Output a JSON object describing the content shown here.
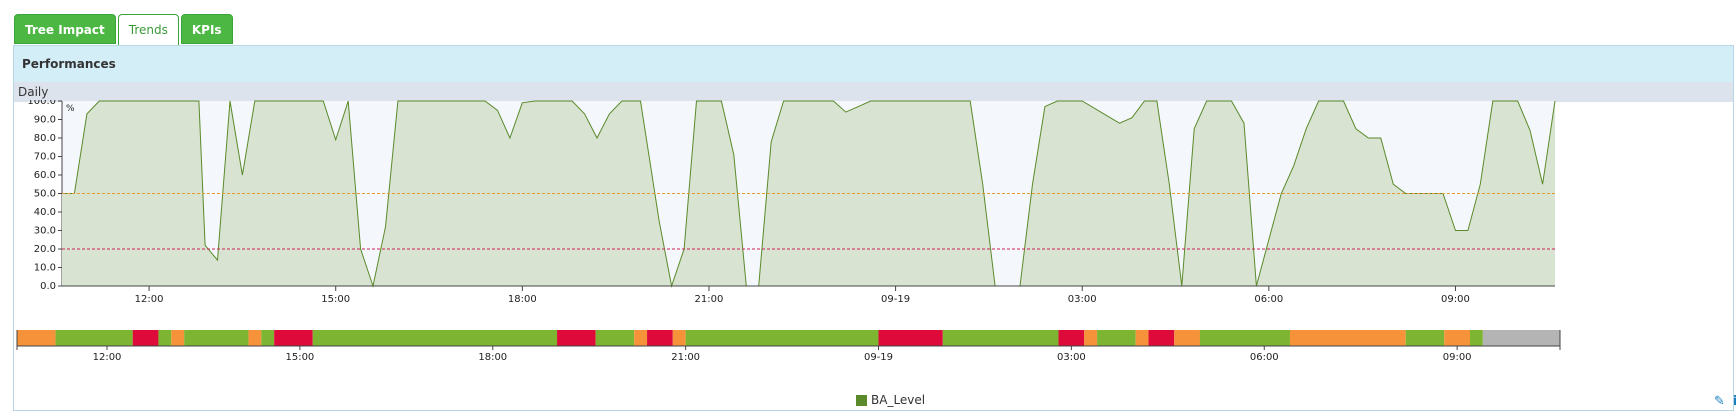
{
  "tabs": [
    {
      "label": "Tree Impact",
      "active": true
    },
    {
      "label": "Trends",
      "active": false
    },
    {
      "label": "KPIs",
      "active": true
    }
  ],
  "panel": {
    "title": "Performances",
    "subtitle": "Daily"
  },
  "chart_data": {
    "type": "area",
    "ylabel": "%",
    "ylim": [
      0,
      100
    ],
    "yticks": [
      "100.0",
      "90.0",
      "80.0",
      "70.0",
      "60.0",
      "50.0",
      "40.0",
      "30.0",
      "20.0",
      "10.0",
      "0.0"
    ],
    "xticks": [
      "12:00",
      "15:00",
      "18:00",
      "21:00",
      "09-19",
      "03:00",
      "06:00",
      "09:00"
    ],
    "x_range_hours": [
      10.6,
      34.6
    ],
    "series": [
      {
        "name": "BA_Level",
        "color": "#5a8a2a",
        "fill": "#d9e3d2",
        "points": [
          [
            10.6,
            50
          ],
          [
            10.8,
            50
          ],
          [
            11.0,
            93
          ],
          [
            11.2,
            100
          ],
          [
            11.4,
            100
          ],
          [
            12.4,
            100
          ],
          [
            12.6,
            100
          ],
          [
            12.8,
            100
          ],
          [
            12.9,
            22
          ],
          [
            13.1,
            14
          ],
          [
            13.3,
            100
          ],
          [
            13.5,
            60
          ],
          [
            13.7,
            100
          ],
          [
            14.5,
            100
          ],
          [
            14.8,
            100
          ],
          [
            15.0,
            79
          ],
          [
            15.2,
            100
          ],
          [
            15.4,
            20
          ],
          [
            15.6,
            0
          ],
          [
            15.8,
            32
          ],
          [
            16.0,
            100
          ],
          [
            16.8,
            100
          ],
          [
            17.0,
            100
          ],
          [
            17.4,
            100
          ],
          [
            17.6,
            95
          ],
          [
            17.8,
            80
          ],
          [
            18.0,
            99
          ],
          [
            18.2,
            100
          ],
          [
            18.6,
            100
          ],
          [
            18.8,
            100
          ],
          [
            19.0,
            93
          ],
          [
            19.2,
            80
          ],
          [
            19.4,
            93
          ],
          [
            19.6,
            100
          ],
          [
            19.9,
            100
          ],
          [
            20.2,
            35
          ],
          [
            20.4,
            0
          ],
          [
            20.6,
            20
          ],
          [
            20.8,
            100
          ],
          [
            21.0,
            100
          ],
          [
            21.2,
            100
          ],
          [
            21.4,
            71
          ],
          [
            21.6,
            0
          ],
          [
            21.8,
            0
          ],
          [
            22.0,
            78
          ],
          [
            22.2,
            100
          ],
          [
            22.6,
            100
          ],
          [
            22.8,
            100
          ],
          [
            23.0,
            100
          ],
          [
            23.2,
            94
          ],
          [
            23.4,
            97
          ],
          [
            23.6,
            100
          ],
          [
            24.6,
            100
          ],
          [
            25.0,
            100
          ],
          [
            25.2,
            100
          ],
          [
            25.4,
            55
          ],
          [
            25.6,
            0
          ],
          [
            26.0,
            0
          ],
          [
            26.2,
            55
          ],
          [
            26.4,
            97
          ],
          [
            26.6,
            100
          ],
          [
            26.8,
            100
          ],
          [
            27.0,
            100
          ],
          [
            27.4,
            92
          ],
          [
            27.6,
            88
          ],
          [
            27.8,
            91
          ],
          [
            28.0,
            100
          ],
          [
            28.2,
            100
          ],
          [
            28.4,
            55
          ],
          [
            28.6,
            0
          ],
          [
            28.8,
            85
          ],
          [
            29.0,
            100
          ],
          [
            29.2,
            100
          ],
          [
            29.4,
            100
          ],
          [
            29.6,
            88
          ],
          [
            29.8,
            0
          ],
          [
            30.0,
            25
          ],
          [
            30.2,
            50
          ],
          [
            30.4,
            65
          ],
          [
            30.6,
            85
          ],
          [
            30.8,
            100
          ],
          [
            31.0,
            100
          ],
          [
            31.2,
            100
          ],
          [
            31.4,
            85
          ],
          [
            31.6,
            80
          ],
          [
            31.8,
            80
          ],
          [
            32.0,
            55
          ],
          [
            32.2,
            50
          ],
          [
            32.4,
            50
          ],
          [
            32.6,
            50
          ],
          [
            32.8,
            50
          ],
          [
            33.0,
            30
          ],
          [
            33.2,
            30
          ],
          [
            33.4,
            55
          ],
          [
            33.6,
            100
          ],
          [
            34.0,
            100
          ],
          [
            34.2,
            84
          ],
          [
            34.4,
            55
          ],
          [
            34.6,
            100
          ]
        ]
      }
    ],
    "thresholds": [
      {
        "value": 50,
        "color": "#e39a2f"
      },
      {
        "value": 20,
        "color": "#cc2255"
      }
    ],
    "status_bar": {
      "xticks": [
        "12:00",
        "15:00",
        "18:00",
        "21:00",
        "09-19",
        "03:00",
        "06:00",
        "09:00"
      ],
      "segments": [
        {
          "from": 10.6,
          "to": 11.2,
          "status": "warning"
        },
        {
          "from": 11.2,
          "to": 12.4,
          "status": "ok"
        },
        {
          "from": 12.4,
          "to": 12.8,
          "status": "critical"
        },
        {
          "from": 12.8,
          "to": 13.0,
          "status": "ok"
        },
        {
          "from": 13.0,
          "to": 13.2,
          "status": "warning"
        },
        {
          "from": 13.2,
          "to": 14.2,
          "status": "ok"
        },
        {
          "from": 14.2,
          "to": 14.4,
          "status": "warning"
        },
        {
          "from": 14.4,
          "to": 14.6,
          "status": "ok"
        },
        {
          "from": 14.6,
          "to": 15.2,
          "status": "critical"
        },
        {
          "from": 15.2,
          "to": 19.0,
          "status": "ok"
        },
        {
          "from": 19.0,
          "to": 19.6,
          "status": "critical"
        },
        {
          "from": 19.6,
          "to": 20.2,
          "status": "ok"
        },
        {
          "from": 20.2,
          "to": 20.4,
          "status": "warning"
        },
        {
          "from": 20.4,
          "to": 20.8,
          "status": "critical"
        },
        {
          "from": 20.8,
          "to": 21.0,
          "status": "warning"
        },
        {
          "from": 21.0,
          "to": 24.0,
          "status": "ok"
        },
        {
          "from": 24.0,
          "to": 25.0,
          "status": "critical"
        },
        {
          "from": 25.0,
          "to": 26.8,
          "status": "ok"
        },
        {
          "from": 26.8,
          "to": 27.2,
          "status": "critical"
        },
        {
          "from": 27.2,
          "to": 27.4,
          "status": "warning"
        },
        {
          "from": 27.4,
          "to": 28.0,
          "status": "ok"
        },
        {
          "from": 28.0,
          "to": 28.2,
          "status": "warning"
        },
        {
          "from": 28.2,
          "to": 28.6,
          "status": "critical"
        },
        {
          "from": 28.6,
          "to": 29.0,
          "status": "warning"
        },
        {
          "from": 29.0,
          "to": 30.4,
          "status": "ok"
        },
        {
          "from": 30.4,
          "to": 32.2,
          "status": "warning"
        },
        {
          "from": 32.2,
          "to": 32.8,
          "status": "ok"
        },
        {
          "from": 32.8,
          "to": 33.2,
          "status": "warning"
        },
        {
          "from": 33.2,
          "to": 33.4,
          "status": "ok"
        },
        {
          "from": 33.4,
          "to": 34.6,
          "status": "unknown"
        }
      ]
    }
  },
  "status_colors": {
    "ok": "#7db533",
    "warning": "#f5923a",
    "critical": "#dd0a3a",
    "unknown": "#b4b4b4"
  },
  "legend": {
    "label": "BA_Level",
    "color": "#5a8a2a"
  },
  "tools": {
    "edit_icon": "✎",
    "info_icon": "i"
  }
}
